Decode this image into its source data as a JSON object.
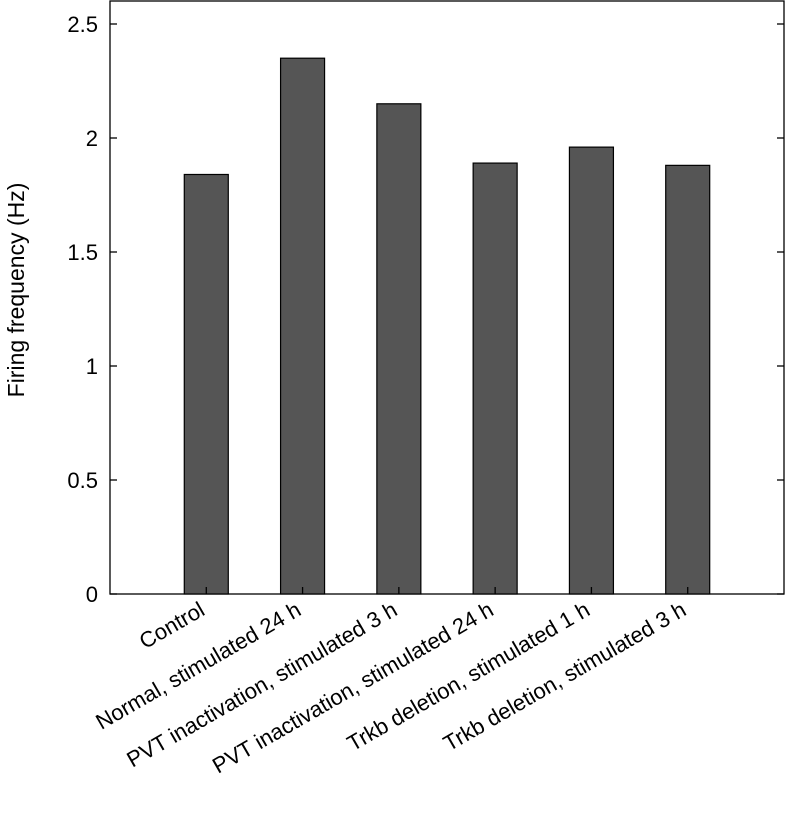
{
  "chart_data": {
    "type": "bar",
    "title": "",
    "xlabel": "",
    "ylabel": "Firing frequency (Hz)",
    "categories": [
      "Control",
      "Normal, stimulated 24 h",
      "PVT inactivation,  stimulated 3 h",
      "PVT inactivation,  stimulated 24 h",
      "Trkb deletion, stimulated 1 h",
      "Trkb deletion, stimulated 3 h"
    ],
    "values": [
      1.84,
      2.35,
      2.15,
      1.89,
      1.96,
      1.88
    ],
    "ylim": [
      0,
      2.5
    ],
    "yticks": [
      0,
      0.5,
      1,
      1.5,
      2,
      2.5
    ],
    "ytick_labels": [
      "0",
      "0.5",
      "1",
      "1.5",
      "2",
      "2.5"
    ],
    "grid": false,
    "bar_color": "#555555",
    "edge_color": "#000000"
  }
}
